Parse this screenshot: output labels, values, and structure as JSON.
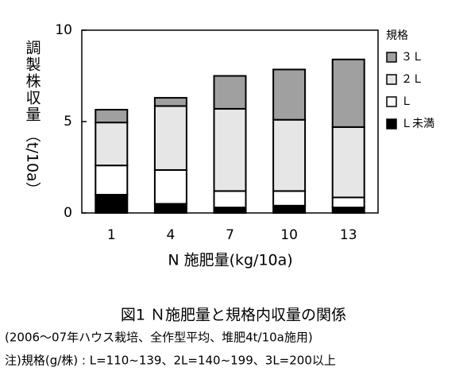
{
  "chart_data": {
    "type": "stacked_bar",
    "y_label": [
      "調製株収量",
      "（t/10a）"
    ],
    "x_label": "N 施肥量(kg/10a)",
    "legend_title": "規格",
    "categories": [
      "1",
      "4",
      "7",
      "10",
      "13"
    ],
    "series": [
      {
        "name": "Ｌ未満",
        "color": "#000000",
        "values": [
          1.0,
          0.5,
          0.3,
          0.4,
          0.3
        ]
      },
      {
        "name": "Ｌ",
        "color": "#ffffff",
        "values": [
          1.6,
          1.85,
          0.9,
          0.8,
          0.55
        ]
      },
      {
        "name": "２Ｌ",
        "color": "#e6e6e6",
        "values": [
          2.35,
          3.5,
          4.5,
          3.9,
          3.85
        ]
      },
      {
        "name": "３Ｌ",
        "color": "#a0a0a0",
        "values": [
          0.7,
          0.45,
          1.8,
          2.75,
          3.7
        ]
      }
    ],
    "ylim": [
      0,
      10
    ],
    "yticks": [
      0,
      5,
      10
    ],
    "caption": [
      "図1 Ｎ施肥量と規格内収量の関係",
      "(2006～07年ハウス栽培、全作型平均、堆肥4t/10a施用)",
      "注)規格(g/株) : L=110~139、2L=140~199、3L=200以上"
    ]
  }
}
